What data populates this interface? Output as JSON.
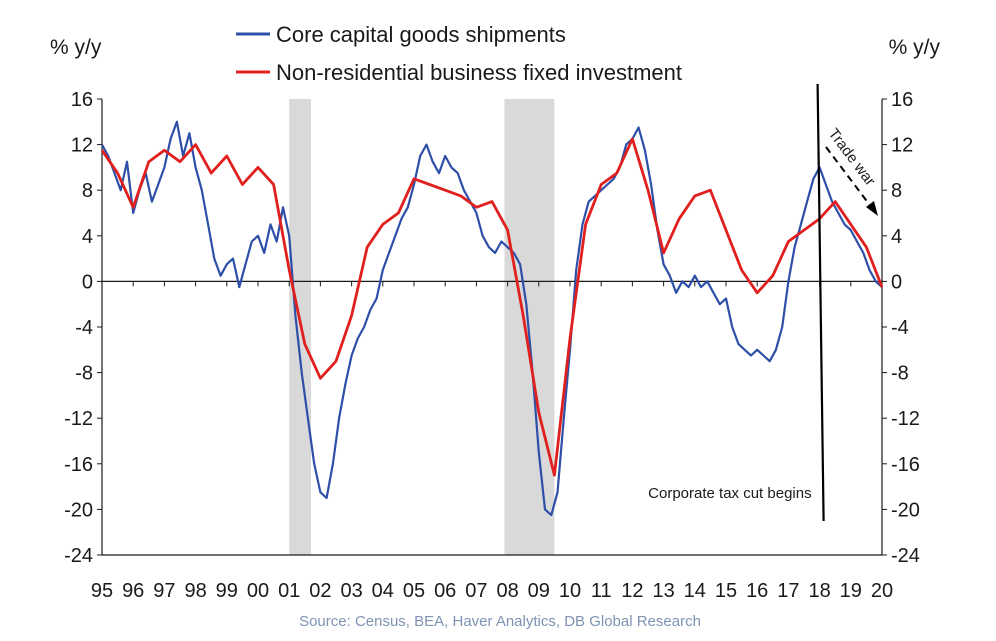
{
  "chart_data": {
    "type": "line",
    "title": "",
    "ylabel_left": "% y/y",
    "ylabel_right": "% y/y",
    "ylim": [
      -24,
      16
    ],
    "yticks": [
      16,
      12,
      8,
      4,
      0,
      -4,
      -8,
      -12,
      -16,
      -20,
      -24
    ],
    "xlim": [
      1995,
      2020
    ],
    "x_tick_labels": [
      "95",
      "96",
      "97",
      "98",
      "99",
      "00",
      "01",
      "02",
      "03",
      "04",
      "05",
      "06",
      "07",
      "08",
      "09",
      "10",
      "11",
      "12",
      "13",
      "14",
      "15",
      "16",
      "17",
      "18",
      "19",
      "20"
    ],
    "recessions": [
      [
        2001.0,
        2001.7
      ],
      [
        2007.9,
        2009.5
      ]
    ],
    "series": [
      {
        "name": "Core capital goods shipments",
        "color": "#2e4fa8",
        "x": [
          1995.0,
          1995.2,
          1995.4,
          1995.6,
          1995.8,
          1996.0,
          1996.2,
          1996.4,
          1996.6,
          1996.8,
          1997.0,
          1997.2,
          1997.4,
          1997.6,
          1997.8,
          1998.0,
          1998.2,
          1998.4,
          1998.6,
          1998.8,
          1999.0,
          1999.2,
          1999.4,
          1999.6,
          1999.8,
          2000.0,
          2000.2,
          2000.4,
          2000.6,
          2000.8,
          2001.0,
          2001.2,
          2001.4,
          2001.6,
          2001.8,
          2002.0,
          2002.2,
          2002.4,
          2002.6,
          2002.8,
          2003.0,
          2003.2,
          2003.4,
          2003.6,
          2003.8,
          2004.0,
          2004.2,
          2004.4,
          2004.6,
          2004.8,
          2005.0,
          2005.2,
          2005.4,
          2005.6,
          2005.8,
          2006.0,
          2006.2,
          2006.4,
          2006.6,
          2006.8,
          2007.0,
          2007.2,
          2007.4,
          2007.6,
          2007.8,
          2008.0,
          2008.2,
          2008.4,
          2008.6,
          2008.8,
          2009.0,
          2009.2,
          2009.4,
          2009.6,
          2009.8,
          2010.0,
          2010.2,
          2010.4,
          2010.6,
          2010.8,
          2011.0,
          2011.2,
          2011.4,
          2011.6,
          2011.8,
          2012.0,
          2012.2,
          2012.4,
          2012.6,
          2012.8,
          2013.0,
          2013.2,
          2013.4,
          2013.6,
          2013.8,
          2014.0,
          2014.2,
          2014.4,
          2014.6,
          2014.8,
          2015.0,
          2015.2,
          2015.4,
          2015.6,
          2015.8,
          2016.0,
          2016.2,
          2016.4,
          2016.6,
          2016.8,
          2017.0,
          2017.2,
          2017.4,
          2017.6,
          2017.8,
          2018.0,
          2018.2,
          2018.4,
          2018.6,
          2018.8,
          2019.0,
          2019.2,
          2019.4,
          2019.6,
          2019.8,
          2020.0
        ],
        "values": [
          12.0,
          11.0,
          9.5,
          8.0,
          10.5,
          6.0,
          8.0,
          9.5,
          7.0,
          8.5,
          10.0,
          12.5,
          14.0,
          11.0,
          13.0,
          10.0,
          8.0,
          5.0,
          2.0,
          0.5,
          1.5,
          2.0,
          -0.5,
          1.5,
          3.5,
          4.0,
          2.5,
          5.0,
          3.5,
          6.5,
          4.0,
          -3.0,
          -8.0,
          -12.0,
          -16.0,
          -18.5,
          -19.0,
          -16.0,
          -12.0,
          -9.0,
          -6.5,
          -5.0,
          -4.0,
          -2.5,
          -1.5,
          1.0,
          2.5,
          4.0,
          5.5,
          6.5,
          8.5,
          11.0,
          12.0,
          10.5,
          9.5,
          11.0,
          10.0,
          9.5,
          8.0,
          7.0,
          6.0,
          4.0,
          3.0,
          2.5,
          3.5,
          3.0,
          2.5,
          1.5,
          -2.0,
          -8.0,
          -15.0,
          -20.0,
          -20.5,
          -18.5,
          -12.0,
          -6.0,
          1.0,
          5.0,
          7.0,
          7.5,
          8.0,
          8.5,
          9.0,
          10.0,
          12.0,
          12.5,
          13.5,
          11.5,
          8.5,
          4.5,
          1.5,
          0.5,
          -1.0,
          0.0,
          -0.5,
          0.5,
          -0.5,
          0.0,
          -1.0,
          -2.0,
          -1.5,
          -4.0,
          -5.5,
          -6.0,
          -6.5,
          -6.0,
          -6.5,
          -7.0,
          -6.0,
          -4.0,
          0.0,
          3.0,
          5.0,
          7.0,
          9.0,
          10.0,
          8.5,
          7.0,
          6.0,
          5.0,
          4.5,
          3.5,
          2.5,
          1.0,
          0.0,
          -0.5
        ]
      },
      {
        "name": "Non-residential business fixed investment",
        "color": "#e0201e",
        "x": [
          1995.0,
          1995.5,
          1996.0,
          1996.5,
          1997.0,
          1997.5,
          1998.0,
          1998.5,
          1999.0,
          1999.5,
          2000.0,
          2000.5,
          2001.0,
          2001.5,
          2002.0,
          2002.5,
          2003.0,
          2003.5,
          2004.0,
          2004.5,
          2005.0,
          2005.5,
          2006.0,
          2006.5,
          2007.0,
          2007.5,
          2008.0,
          2008.5,
          2009.0,
          2009.5,
          2010.0,
          2010.5,
          2011.0,
          2011.5,
          2012.0,
          2012.5,
          2013.0,
          2013.5,
          2014.0,
          2014.5,
          2015.0,
          2015.5,
          2016.0,
          2016.5,
          2017.0,
          2017.5,
          2018.0,
          2018.5,
          2019.0,
          2019.5,
          2020.0
        ],
        "values": [
          11.5,
          9.5,
          6.5,
          10.5,
          11.5,
          10.5,
          12.0,
          9.5,
          11.0,
          8.5,
          10.0,
          8.5,
          1.0,
          -5.5,
          -8.5,
          -7.0,
          -3.0,
          3.0,
          5.0,
          6.0,
          9.0,
          8.5,
          8.0,
          7.5,
          6.5,
          7.0,
          4.5,
          -3.0,
          -11.5,
          -17.0,
          -5.0,
          5.0,
          8.5,
          9.5,
          12.5,
          8.0,
          2.5,
          5.5,
          7.5,
          8.0,
          4.5,
          1.0,
          -1.0,
          0.5,
          3.5,
          4.5,
          5.5,
          7.0,
          5.0,
          3.0,
          -0.5
        ]
      }
    ],
    "annotations": {
      "tax_cut": "Corporate tax cut begins",
      "trade_war": "Trade war"
    },
    "annotation_x": {
      "tax_cut_line": 2018.0
    }
  },
  "legend": {
    "entries": [
      "Core capital goods shipments",
      "Non-residential business fixed investment"
    ]
  },
  "source_text": "Source: Census, BEA, Haver Analytics, DB Global Research"
}
